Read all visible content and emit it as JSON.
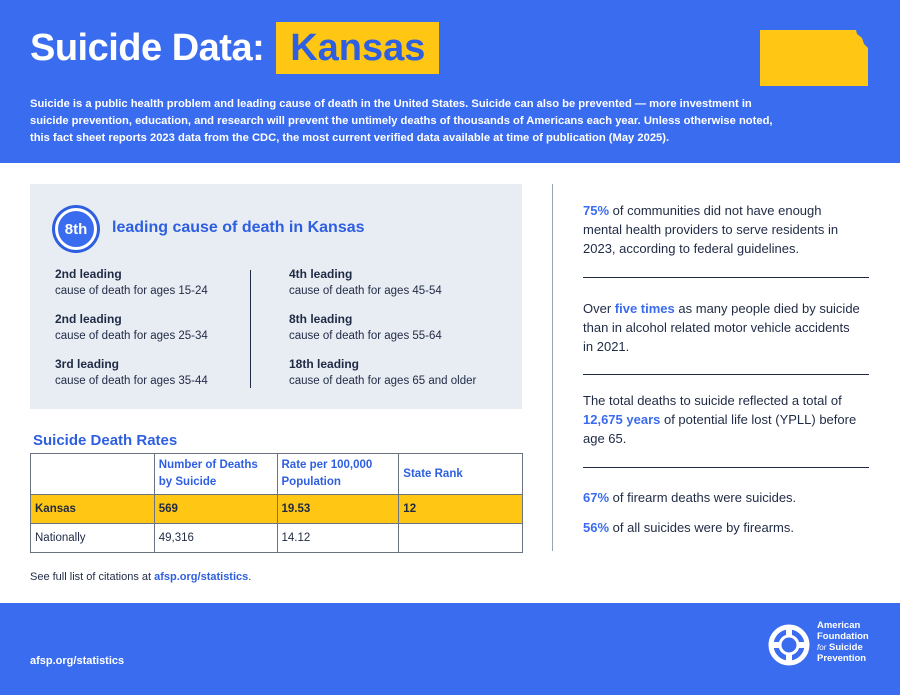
{
  "header": {
    "title": "Suicide Data:",
    "state": "Kansas",
    "intro": "Suicide is a public health problem and leading cause of death in the United States. Suicide can also be prevented — more investment in suicide prevention, education, and research will prevent the untimely deaths of thousands of Americans each year. Unless otherwise noted, this fact sheet reports 2023 data from the CDC, the most current verified data available at time of publication (May 2025)."
  },
  "colors": {
    "brand_blue": "#3a6cf0",
    "highlight_yellow": "#ffc713",
    "panel_gray": "#e8ecf3"
  },
  "leading_cause": {
    "rank": "8th",
    "heading": "leading cause of death in Kansas",
    "left": [
      {
        "rank": "2nd leading",
        "desc": "cause of death for ages 15-24"
      },
      {
        "rank": "2nd leading",
        "desc": "cause of death for ages 25-34"
      },
      {
        "rank": "3rd leading",
        "desc": "cause of death for ages 35-44"
      }
    ],
    "right": [
      {
        "rank": "4th leading",
        "desc": "cause of death for ages 45-54"
      },
      {
        "rank": "8th leading",
        "desc": "cause of death for ages 55-64"
      },
      {
        "rank": "18th leading",
        "desc": "cause of death for ages 65 and older"
      }
    ]
  },
  "rates": {
    "title": "Suicide Death Rates",
    "headers": [
      "",
      "Number of Deaths by Suicide",
      "Rate per 100,000 Population",
      "State Rank"
    ],
    "kansas": [
      "Kansas",
      "569",
      "19.53",
      "12"
    ],
    "national": [
      "Nationally",
      "49,316",
      "14.12",
      ""
    ]
  },
  "citation": {
    "prefix": "See full list of citations at ",
    "link": "afsp.org/statistics",
    "suffix": "."
  },
  "stats": {
    "s1": {
      "hl": "75%",
      "text": " of communities did not have enough mental health providers to serve residents in 2023, according to federal guidelines."
    },
    "s2": {
      "pre": "Over ",
      "hl": "five times",
      "text": " as many people died by suicide than in alcohol related motor vehicle accidents in 2021."
    },
    "s3": {
      "pre": "The total deaths to suicide reflected a total of ",
      "hl": "12,675 years",
      "text": " of potential life lost (YPLL) before age 65."
    },
    "s4": {
      "hl": "67%",
      "text": " of firearm deaths were suicides."
    },
    "s5": {
      "hl": "56%",
      "text": " of all suicides were by firearms."
    }
  },
  "footer": {
    "url": "afsp.org/statistics",
    "org_line1": "American",
    "org_line2": "Foundation",
    "org_for": "for",
    "org_line3": "Suicide",
    "org_line4": "Prevention",
    "logo_icon": "lifebuoy-icon"
  }
}
